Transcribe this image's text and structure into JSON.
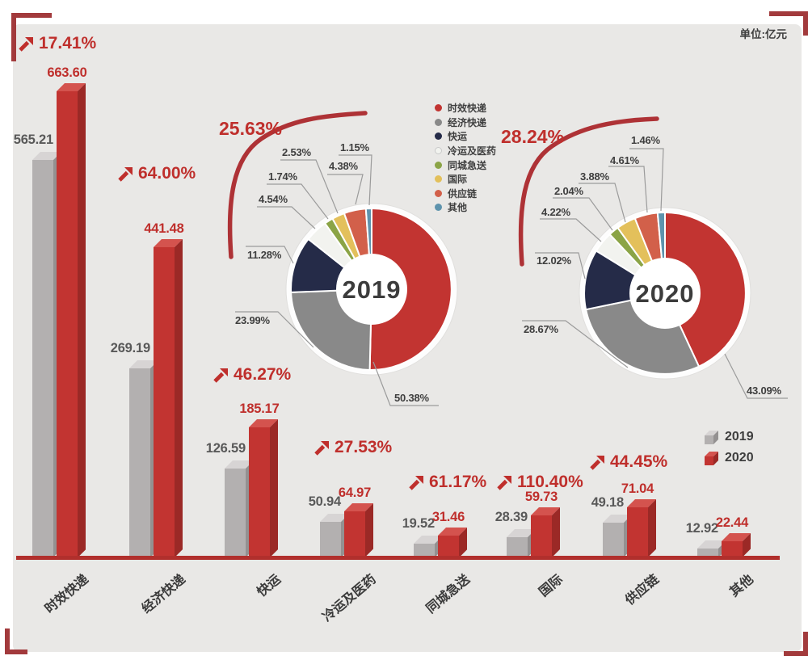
{
  "unit_label": "单位:亿元",
  "palette": {
    "accent_red": "#c23431",
    "bar_gray": "#b3b0b0",
    "growth_red": "#bf2f2c",
    "panel_bg": "#e9e8e6",
    "bracket_red": "#a23a3c",
    "axis_red": "#b12f2c",
    "text_dark": "#3f3f3f"
  },
  "segments": [
    {
      "label": "时效快递",
      "color": "#c23431"
    },
    {
      "label": "经济快递",
      "color": "#898989"
    },
    {
      "label": "快运",
      "color": "#252b48"
    },
    {
      "label": "冷运及医药",
      "color": "#f2f3ef"
    },
    {
      "label": "同城急送",
      "color": "#8ba446"
    },
    {
      "label": "国际",
      "color": "#e3c05b"
    },
    {
      "label": "供应链",
      "color": "#d2604a"
    },
    {
      "label": "其他",
      "color": "#5e93ad"
    }
  ],
  "bar_legend": [
    {
      "label": "2019",
      "color": "#b3b0b0"
    },
    {
      "label": "2020",
      "color": "#c23431"
    }
  ],
  "chart_data": [
    {
      "type": "bar",
      "unit": "亿元",
      "legend_position": "right",
      "categories": [
        "时效快递",
        "经济快递",
        "快运",
        "冷运及医药",
        "同城急送",
        "国际",
        "供应链",
        "其他"
      ],
      "series": [
        {
          "name": "2019",
          "values": [
            565.21,
            269.19,
            126.59,
            50.94,
            19.52,
            28.39,
            49.18,
            12.92
          ],
          "labels": [
            "565.21",
            "269.19",
            "126.59",
            "50.94",
            "19.52",
            "28.39",
            "49.18",
            "12.92"
          ]
        },
        {
          "name": "2020",
          "values": [
            663.6,
            441.48,
            185.17,
            64.97,
            31.46,
            59.73,
            71.04,
            22.44
          ],
          "labels": [
            "663.60",
            "441.48",
            "185.17",
            "64.97",
            "31.46",
            "59.73",
            "71.04",
            "22.44"
          ]
        }
      ],
      "growth": [
        "17.41%",
        "64.00%",
        "46.27%",
        "27.53%",
        "61.17%",
        "110.40%",
        "44.45%",
        ""
      ]
    },
    {
      "type": "pie",
      "center_label": "2019",
      "overall_growth": "25.63%",
      "categories": [
        "时效快递",
        "经济快递",
        "快运",
        "冷运及医药",
        "同城急送",
        "国际",
        "供应链",
        "其他"
      ],
      "values": [
        50.38,
        23.99,
        11.28,
        4.54,
        1.74,
        2.53,
        4.38,
        1.15
      ],
      "value_labels": [
        "50.38%",
        "23.99%",
        "11.28%",
        "4.54%",
        "1.74%",
        "2.53%",
        "4.38%",
        "1.15%"
      ]
    },
    {
      "type": "pie",
      "center_label": "2020",
      "overall_growth": "28.24%",
      "categories": [
        "时效快递",
        "经济快递",
        "快运",
        "冷运及医药",
        "同城急送",
        "国际",
        "供应链",
        "其他"
      ],
      "values": [
        43.09,
        28.67,
        12.02,
        4.22,
        2.04,
        3.88,
        4.61,
        1.46
      ],
      "value_labels": [
        "43.09%",
        "28.67%",
        "12.02%",
        "4.22%",
        "2.04%",
        "3.88%",
        "4.61%",
        "1.46%"
      ]
    }
  ]
}
